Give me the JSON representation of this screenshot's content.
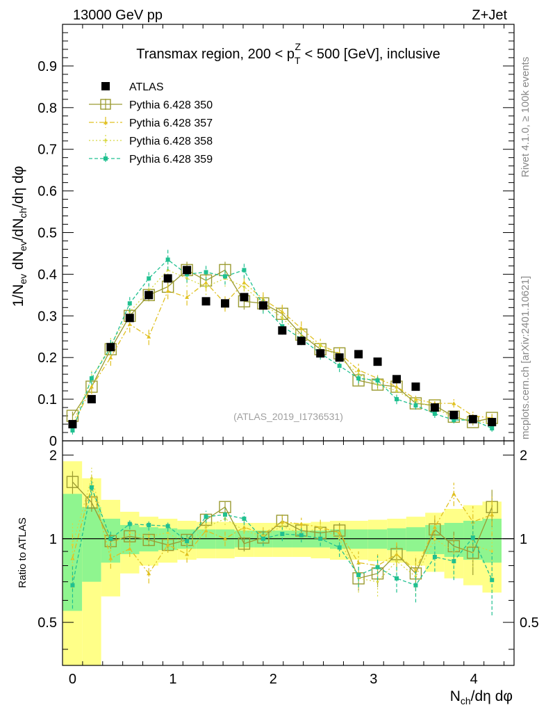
{
  "header": {
    "left": "13000 GeV pp",
    "right": "Z+Jet",
    "side_top": "Rivet 4.1.0, ≥ 100k events",
    "side_bottom": "mcplots.cern.ch [arXiv:2401.10621]"
  },
  "chart_data": {
    "type": "scatter",
    "title_pre": "Transmax region, 200 < p",
    "title_sup": "Z",
    "title_sub": "T",
    "title_post": " < 500 [GeV], inclusive",
    "watermark": "(ATLAS_2019_I1736531)",
    "ylabel_main": "1/N_ev dN_ev/dN_ch/dη dφ",
    "ylabel_ratio": "Ratio to ATLAS",
    "xlabel": "N_ch/dη dφ",
    "xlim": [
      -0.1,
      4.4
    ],
    "ylim_main": [
      0,
      1.0
    ],
    "ylim_ratio": [
      0.35,
      2.25
    ],
    "x_ticks": [
      "0",
      "1",
      "2",
      "3",
      "4"
    ],
    "y_ticks_main": [
      "0",
      "0.1",
      "0.2",
      "0.3",
      "0.4",
      "0.5",
      "0.6",
      "0.7",
      "0.8",
      "0.9"
    ],
    "y_ticks_ratio": [
      "0.5",
      "1",
      "2"
    ],
    "x": [
      0.0,
      0.19,
      0.38,
      0.57,
      0.76,
      0.95,
      1.14,
      1.33,
      1.52,
      1.71,
      1.9,
      2.09,
      2.28,
      2.47,
      2.66,
      2.85,
      3.04,
      3.23,
      3.42,
      3.61,
      3.8,
      3.99,
      4.18
    ],
    "band_inner": [
      0.45,
      0.3,
      0.18,
      0.12,
      0.1,
      0.09,
      0.08,
      0.08,
      0.08,
      0.07,
      0.07,
      0.07,
      0.07,
      0.07,
      0.08,
      0.08,
      0.08,
      0.09,
      0.1,
      0.12,
      0.14,
      0.16,
      0.18
    ],
    "band_outer": [
      0.9,
      0.65,
      0.38,
      0.25,
      0.2,
      0.18,
      0.16,
      0.15,
      0.15,
      0.14,
      0.14,
      0.14,
      0.14,
      0.15,
      0.16,
      0.16,
      0.17,
      0.18,
      0.2,
      0.24,
      0.28,
      0.32,
      0.36
    ],
    "band_colors": {
      "inner": "#8ff58f",
      "outer": "#ffff88"
    },
    "series": [
      {
        "name": "ATLAS",
        "color": "#000000",
        "marker": "square-filled",
        "dash": "",
        "values": [
          0.04,
          0.1,
          0.225,
          0.295,
          0.35,
          0.39,
          0.41,
          0.335,
          0.33,
          0.345,
          0.325,
          0.265,
          0.24,
          0.21,
          0.2,
          0.208,
          0.19,
          0.148,
          0.13,
          0.08,
          0.062,
          0.052,
          0.045
        ]
      },
      {
        "name": "Pythia 6.428 350",
        "color": "#9a9a30",
        "marker": "square-open",
        "dash": "",
        "values": [
          0.06,
          0.13,
          0.22,
          0.3,
          0.35,
          0.37,
          0.41,
          0.385,
          0.41,
          0.335,
          0.33,
          0.305,
          0.255,
          0.22,
          0.21,
          0.145,
          0.135,
          0.13,
          0.09,
          0.085,
          0.058,
          0.045,
          0.055
        ],
        "errors": [
          0.01,
          0.015,
          0.015,
          0.015,
          0.015,
          0.015,
          0.02,
          0.02,
          0.02,
          0.02,
          0.02,
          0.02,
          0.015,
          0.015,
          0.015,
          0.012,
          0.012,
          0.012,
          0.01,
          0.01,
          0.008,
          0.008,
          0.008
        ],
        "ratio": [
          1.6,
          1.35,
          0.98,
          1.02,
          0.99,
          0.95,
          0.99,
          1.17,
          1.3,
          0.96,
          1.01,
          1.16,
          1.07,
          1.05,
          1.07,
          0.72,
          0.75,
          0.88,
          0.75,
          1.08,
          0.94,
          0.89,
          1.3
        ],
        "ratio_errors": [
          0.15,
          0.1,
          0.06,
          0.05,
          0.05,
          0.05,
          0.05,
          0.06,
          0.06,
          0.06,
          0.06,
          0.06,
          0.06,
          0.06,
          0.07,
          0.07,
          0.08,
          0.08,
          0.1,
          0.1,
          0.12,
          0.15,
          0.2
        ]
      },
      {
        "name": "Pythia 6.428 357",
        "color": "#e0c020",
        "marker": "triangle",
        "dash": "7,3,2,3",
        "values": [
          0.035,
          0.13,
          0.2,
          0.28,
          0.25,
          0.36,
          0.345,
          0.38,
          0.33,
          0.38,
          0.34,
          0.31,
          0.27,
          0.23,
          0.21,
          0.17,
          0.15,
          0.13,
          0.1,
          0.09,
          0.09,
          0.06,
          0.055
        ],
        "errors": [
          0.012,
          0.018,
          0.02,
          0.02,
          0.02,
          0.02,
          0.02,
          0.02,
          0.02,
          0.02,
          0.02,
          0.02,
          0.02,
          0.015,
          0.015,
          0.015,
          0.012,
          0.012,
          0.012,
          0.01,
          0.01,
          0.01,
          0.01
        ],
        "ratio": [
          0.85,
          1.55,
          0.85,
          0.92,
          0.75,
          0.95,
          0.88,
          1.07,
          1.0,
          1.1,
          1.04,
          1.15,
          1.13,
          1.1,
          1.05,
          0.82,
          0.8,
          0.88,
          0.77,
          1.1,
          1.45,
          1.15,
          1.22
        ],
        "ratio_errors": [
          0.2,
          0.15,
          0.07,
          0.06,
          0.06,
          0.06,
          0.06,
          0.06,
          0.06,
          0.06,
          0.06,
          0.06,
          0.06,
          0.07,
          0.07,
          0.08,
          0.08,
          0.09,
          0.1,
          0.12,
          0.14,
          0.16,
          0.2
        ]
      },
      {
        "name": "Pythia 6.428 358",
        "color": "#d8d840",
        "marker": "dot",
        "dash": "2,3",
        "values": [
          0.04,
          0.15,
          0.23,
          0.31,
          0.36,
          0.41,
          0.39,
          0.37,
          0.39,
          0.37,
          0.33,
          0.295,
          0.25,
          0.23,
          0.2,
          0.16,
          0.135,
          0.12,
          0.095,
          0.08,
          0.055,
          0.05,
          0.04
        ],
        "errors": [
          0.012,
          0.018,
          0.02,
          0.02,
          0.02,
          0.02,
          0.02,
          0.02,
          0.02,
          0.02,
          0.02,
          0.02,
          0.02,
          0.015,
          0.015,
          0.015,
          0.012,
          0.012,
          0.012,
          0.01,
          0.01,
          0.01,
          0.01
        ],
        "ratio": [
          0.95,
          1.65,
          0.95,
          1.05,
          1.02,
          1.05,
          0.95,
          1.1,
          1.18,
          1.07,
          1.02,
          1.11,
          1.04,
          1.1,
          1.0,
          0.72,
          0.7,
          0.83,
          0.73,
          1.0,
          0.9,
          0.95,
          0.9
        ],
        "ratio_errors": [
          0.2,
          0.15,
          0.07,
          0.06,
          0.06,
          0.06,
          0.06,
          0.06,
          0.06,
          0.06,
          0.06,
          0.06,
          0.06,
          0.07,
          0.07,
          0.08,
          0.08,
          0.09,
          0.1,
          0.12,
          0.14,
          0.16,
          0.2
        ]
      },
      {
        "name": "Pythia 6.428 359",
        "color": "#20c090",
        "marker": "square-small",
        "dash": "5,3",
        "values": [
          0.025,
          0.15,
          0.225,
          0.33,
          0.39,
          0.435,
          0.4,
          0.405,
          0.395,
          0.41,
          0.325,
          0.275,
          0.245,
          0.21,
          0.18,
          0.15,
          0.145,
          0.1,
          0.085,
          0.065,
          0.05,
          0.05,
          0.03
        ],
        "errors": [
          0.01,
          0.015,
          0.018,
          0.02,
          0.02,
          0.025,
          0.02,
          0.02,
          0.02,
          0.02,
          0.02,
          0.02,
          0.015,
          0.015,
          0.015,
          0.012,
          0.012,
          0.012,
          0.01,
          0.01,
          0.008,
          0.008,
          0.008
        ],
        "ratio": [
          0.68,
          1.53,
          1.0,
          1.13,
          1.12,
          1.11,
          0.98,
          1.2,
          1.22,
          1.18,
          1.0,
          1.04,
          1.03,
          1.0,
          0.93,
          0.74,
          0.79,
          0.72,
          0.68,
          0.86,
          0.83,
          1.01,
          0.71
        ],
        "ratio_errors": [
          0.12,
          0.1,
          0.06,
          0.05,
          0.05,
          0.05,
          0.05,
          0.06,
          0.06,
          0.06,
          0.06,
          0.06,
          0.06,
          0.06,
          0.07,
          0.07,
          0.08,
          0.08,
          0.09,
          0.1,
          0.12,
          0.15,
          0.18
        ]
      }
    ]
  }
}
